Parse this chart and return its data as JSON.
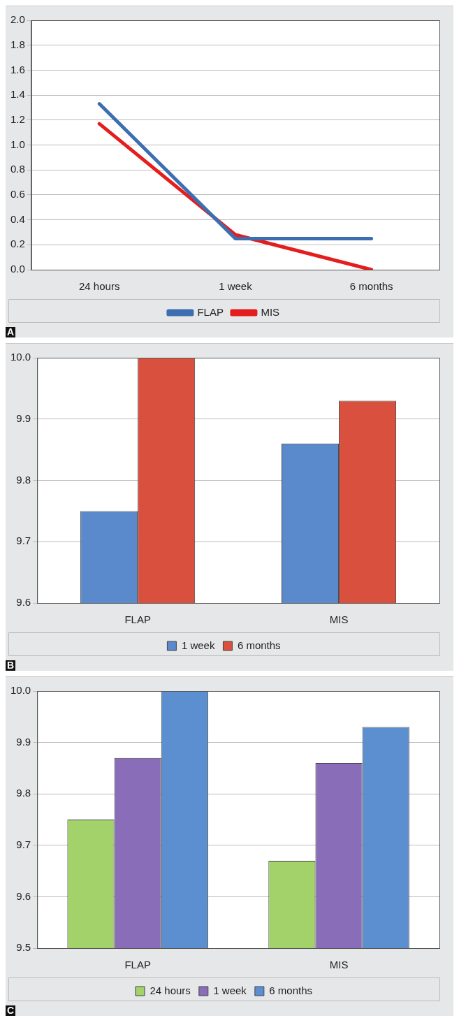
{
  "chart_data": [
    {
      "type": "line",
      "categories": [
        "24 hours",
        "1 week",
        "6 months"
      ],
      "ylim": [
        0,
        2
      ],
      "yticks": [
        {
          "value": 0,
          "label": "0.0"
        },
        {
          "value": 0.2,
          "label": "0.2"
        },
        {
          "value": 0.4,
          "label": "0.4"
        },
        {
          "value": 0.6,
          "label": "0.6"
        },
        {
          "value": 0.8,
          "label": "0.8"
        },
        {
          "value": 1,
          "label": "1.0"
        },
        {
          "value": 1.2,
          "label": "1.2"
        },
        {
          "value": 1.4,
          "label": "1.4"
        },
        {
          "value": 1.6,
          "label": "1.6"
        },
        {
          "value": 1.8,
          "label": "1.8"
        },
        {
          "value": 2,
          "label": "2.0"
        }
      ],
      "grid": "y",
      "legend": "bottom",
      "annotations": [
        "A"
      ],
      "series": [
        {
          "name": "FLAP",
          "color": "#3d6fb0",
          "values": [
            1.33,
            0.25,
            0.25
          ]
        },
        {
          "name": "MIS",
          "color": "#e41e1e",
          "values": [
            1.17,
            0.28,
            0.0
          ]
        }
      ]
    },
    {
      "type": "bar",
      "categories": [
        "FLAP",
        "MIS"
      ],
      "ylim": [
        9.6,
        10
      ],
      "yticks": [
        9.6,
        9.7,
        9.8,
        9.9,
        {
          "value": 10,
          "label": "10.0"
        }
      ],
      "grid": "y",
      "legend": "bottom",
      "annotations": [
        "B"
      ],
      "series": [
        {
          "name": "1 week",
          "color": "#5a89cc",
          "values": [
            9.75,
            9.86
          ]
        },
        {
          "name": "6 months",
          "color": "#d9503f",
          "values": [
            10.0,
            9.93
          ]
        }
      ]
    },
    {
      "type": "bar",
      "categories": [
        "FLAP",
        "MIS"
      ],
      "ylim": [
        9.5,
        10
      ],
      "yticks": [
        9.5,
        9.6,
        9.7,
        9.8,
        9.9,
        {
          "value": 10,
          "label": "10.0"
        }
      ],
      "grid": "y",
      "legend": "bottom",
      "annotations": [
        "C"
      ],
      "series": [
        {
          "name": "24 hours",
          "color": "#a3d26a",
          "values": [
            9.75,
            9.67
          ]
        },
        {
          "name": "1 week",
          "color": "#8a6db8",
          "values": [
            9.87,
            9.86
          ]
        },
        {
          "name": "6 months",
          "color": "#5b8fd0",
          "values": [
            10.0,
            9.93
          ]
        }
      ]
    }
  ]
}
